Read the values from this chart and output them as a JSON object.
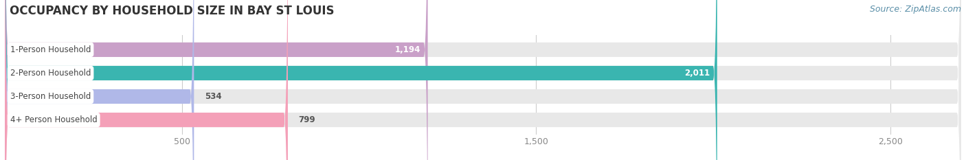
{
  "title": "OCCUPANCY BY HOUSEHOLD SIZE IN BAY ST LOUIS",
  "source": "Source: ZipAtlas.com",
  "categories": [
    "1-Person Household",
    "2-Person Household",
    "3-Person Household",
    "4+ Person Household"
  ],
  "values": [
    1194,
    2011,
    534,
    799
  ],
  "value_labels": [
    "1,194",
    "2,011",
    "534",
    "799"
  ],
  "bar_colors": [
    "#c9a0c8",
    "#3ab5b0",
    "#b0b8e8",
    "#f4a0b8"
  ],
  "bar_bg_color": "#e8e8e8",
  "background_color": "#ffffff",
  "xlim": [
    0,
    2700
  ],
  "xticks": [
    500,
    1500,
    2500
  ],
  "xtick_labels": [
    "500",
    "1,500",
    "2,500"
  ],
  "title_fontsize": 12,
  "source_fontsize": 9,
  "bar_label_fontsize": 8.5,
  "tick_fontsize": 9,
  "value_label_color_inside": "#ffffff",
  "value_label_color_outside": "#555555",
  "bar_height": 0.62,
  "grid_color": "#cccccc",
  "value_inside_threshold": 900
}
